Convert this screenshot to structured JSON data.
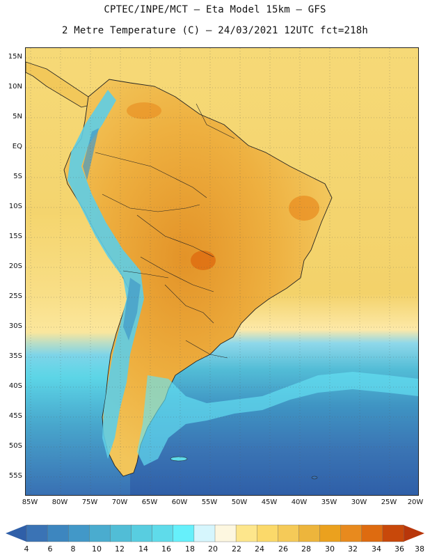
{
  "title": {
    "line1": "CPTEC/INPE/MCT –  Eta Model 15km – GFS",
    "line2": "2 Metre Temperature (C) – 24/03/2021 12UTC fct=218h"
  },
  "map": {
    "lat_labels": [
      "15N",
      "10N",
      "5N",
      "EQ",
      "5S",
      "10S",
      "15S",
      "20S",
      "25S",
      "30S",
      "35S",
      "40S",
      "45S",
      "50S",
      "55S"
    ],
    "lon_labels": [
      "85W",
      "80W",
      "75W",
      "70W",
      "65W",
      "60W",
      "55W",
      "50W",
      "45W",
      "40W",
      "35W",
      "30W",
      "25W",
      "20W"
    ]
  },
  "colorbar": {
    "labels": [
      "4",
      "6",
      "8",
      "10",
      "12",
      "14",
      "16",
      "18",
      "20",
      "22",
      "24",
      "26",
      "28",
      "30",
      "32",
      "34",
      "36",
      "38"
    ],
    "colors": [
      "#3a73b5",
      "#3d86bf",
      "#4298c8",
      "#4aaccf",
      "#51bdd6",
      "#58cde0",
      "#5fdbea",
      "#66f0fb",
      "#d6f6fd",
      "#fdf7e0",
      "#fde68c",
      "#fbd96a",
      "#f5ca58",
      "#edb53c",
      "#eba11e",
      "#e88a1e",
      "#de6b10",
      "#c8480a"
    ],
    "end_low_color": "#2f5fa8",
    "end_high_color": "#b8360a"
  },
  "colors": {
    "ocean_cold": "#3a6fb0",
    "ocean_mid": "#4fb3d3",
    "ocean_warm": "#f3d36a",
    "land_warm": "#eeb43f",
    "land_hot": "#e08a26",
    "andes": "#5ecde5"
  }
}
